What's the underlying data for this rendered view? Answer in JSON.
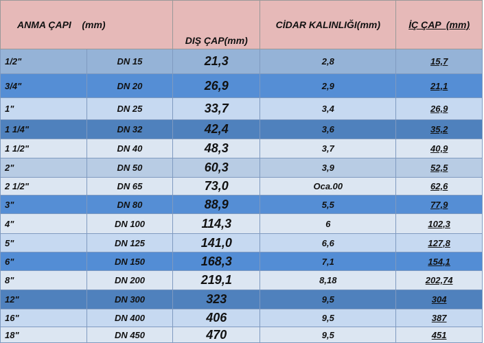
{
  "table": {
    "header": [
      "ANMA ÇAPI    (mm)",
      "DIŞ ÇAP(mm)",
      "CİDAR KALINLIĞI(mm)",
      "İÇ ÇAP  (mm)"
    ],
    "rows": [
      [
        "1/2\"",
        "DN 15",
        "21,3",
        "2,8",
        "15,7"
      ],
      [
        "3/4\"",
        "DN 20",
        "26,9",
        "2,9",
        "21,1"
      ],
      [
        "1\"",
        "DN 25",
        "33,7",
        "3,4",
        "26,9"
      ],
      [
        "1 1/4\"",
        "DN 32",
        "42,4",
        "3,6",
        "35,2"
      ],
      [
        "1 1/2\"",
        "DN 40",
        "48,3",
        "3,7",
        "40,9"
      ],
      [
        "2\"",
        "DN 50",
        "60,3",
        "3,9",
        "52,5"
      ],
      [
        "2 1/2\"",
        "DN 65",
        "73,0",
        "Oca.00",
        "62,6"
      ],
      [
        "3\"",
        "DN 80",
        "88,9",
        "5,5",
        "77,9"
      ],
      [
        "4\"",
        "DN 100",
        "114,3",
        "6",
        "102,3"
      ],
      [
        "5\"",
        "DN 125",
        "141,0",
        "6,6",
        "127,8"
      ],
      [
        "6\"",
        "DN 150",
        "168,3",
        "7,1",
        "154,1"
      ],
      [
        "8\"",
        "DN 200",
        "219,1",
        "8,18",
        "202,74"
      ],
      [
        "12\"",
        "DN 300",
        "323",
        "9,5",
        "304"
      ],
      [
        "16\"",
        "DN 400",
        "406",
        "9,5",
        "387"
      ],
      [
        "18\"",
        "DN 450",
        "470",
        "9,5",
        "451"
      ]
    ]
  }
}
